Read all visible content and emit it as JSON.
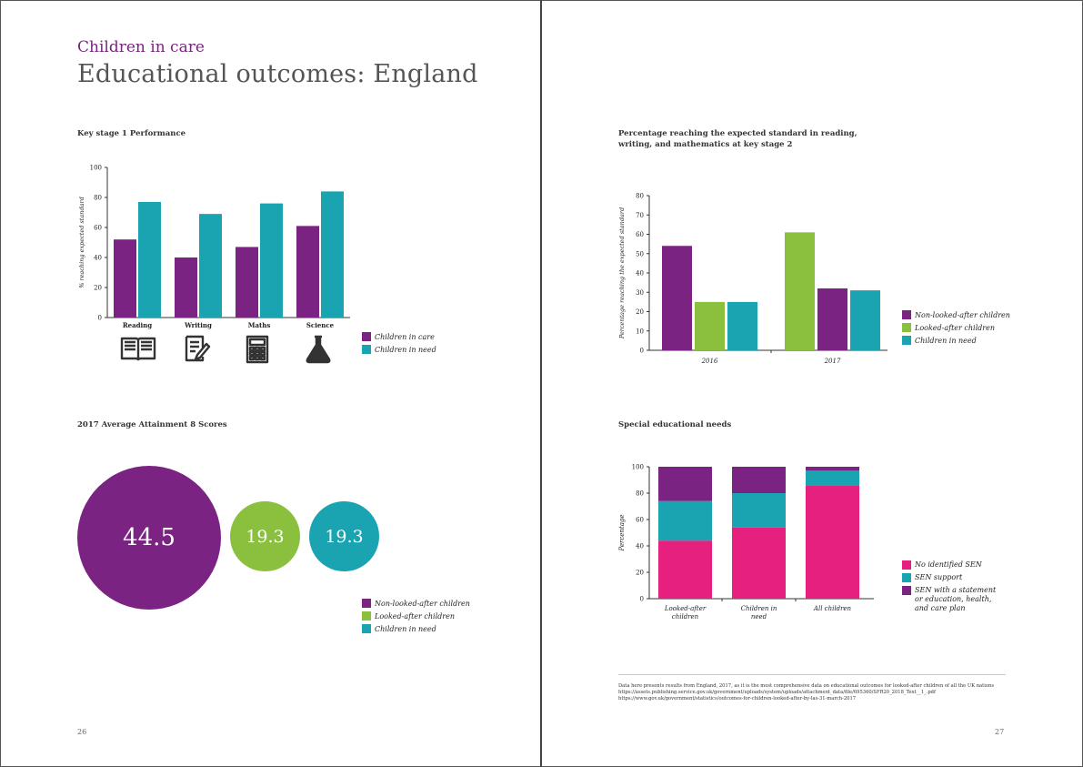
{
  "header": {
    "section_title": "Children in care",
    "main_title": "Educational outcomes: England"
  },
  "colors": {
    "purple": "#7b2382",
    "teal": "#1aa3b0",
    "green": "#8bbf3e",
    "pink": "#e5207f"
  },
  "icons": [
    "book-icon",
    "document-pen-icon",
    "calculator-icon",
    "flask-icon"
  ],
  "ks1": {
    "chart_data": {
      "type": "bar",
      "title": "Key stage 1 Performance",
      "ylabel": "% reaching expected standard",
      "ylim": [
        0,
        100
      ],
      "yticks": [
        "0",
        "20",
        "40",
        "60",
        "80",
        "100"
      ],
      "categories": [
        "Reading",
        "Writing",
        "Maths",
        "Science"
      ],
      "series": [
        {
          "name": "Children in care",
          "values": [
            52,
            40,
            47,
            61
          ]
        },
        {
          "name": "Children in need",
          "values": [
            77,
            69,
            76,
            84
          ]
        }
      ]
    }
  },
  "ks2": {
    "chart_data": {
      "type": "bar",
      "title": "Percentage reaching the expected standard in reading, writing, and mathematics at key stage 2",
      "title_line1": "Percentage reaching the expected standard in reading,",
      "title_line2": "writing, and mathematics at key stage 2",
      "ylabel": "Percentage reaching the expected standard",
      "ylim": [
        0,
        80
      ],
      "yticks": [
        "0",
        "10",
        "20",
        "30",
        "40",
        "50",
        "60",
        "70",
        "80"
      ],
      "groups": [
        {
          "label": "2016",
          "bars": [
            {
              "series": "Non-looked-after children",
              "value": 54
            },
            {
              "series": "Looked-after children",
              "value": 25
            },
            {
              "series": "Children in need",
              "value": 25
            }
          ]
        },
        {
          "label": "2017",
          "bars": [
            {
              "series": "Looked-after children",
              "value": 61
            },
            {
              "series": "Non-looked-after children",
              "value": 32
            },
            {
              "series": "Children in need",
              "value": 31
            }
          ]
        }
      ],
      "legend": [
        "Non-looked-after children",
        "Looked-after children",
        "Children in need"
      ]
    }
  },
  "attainment": {
    "chart_data": {
      "type": "bubble",
      "title": "2017 Average Attainment 8 Scores",
      "values": [
        {
          "series": "Non-looked-after children",
          "value": 44.5,
          "label": "44.5"
        },
        {
          "series": "Looked-after children",
          "value": 19.3,
          "label": "19.3"
        },
        {
          "series": "Children in need",
          "value": 19.3,
          "label": "19.3"
        }
      ],
      "legend": [
        "Non-looked-after children",
        "Looked-after children",
        "Children in need"
      ]
    }
  },
  "sen": {
    "chart_data": {
      "type": "bar",
      "stacked": true,
      "title": "Special educational needs",
      "ylabel": "Percentage",
      "ylim": [
        0,
        100
      ],
      "yticks": [
        "0",
        "20",
        "40",
        "60",
        "80",
        "100"
      ],
      "categories": [
        "Looked-after children",
        "Children in need",
        "All children"
      ],
      "category_lines": [
        [
          "Looked-after",
          "children"
        ],
        [
          "Children in",
          "need"
        ],
        [
          "All children"
        ]
      ],
      "series": [
        {
          "name": "No identified SEN",
          "values": [
            44,
            54,
            86
          ]
        },
        {
          "name": "SEN support",
          "values": [
            30,
            26,
            11
          ]
        },
        {
          "name": "SEN with a statement or education, health, and care plan",
          "values": [
            26,
            20,
            3
          ]
        }
      ],
      "legend_lines": [
        [
          "No identified SEN"
        ],
        [
          "SEN support"
        ],
        [
          "SEN with a statement",
          "or education, health,",
          "and care plan"
        ]
      ]
    }
  },
  "footnote": {
    "line1": "Data here presents results from England, 2017, as it is the most comprehensive data on educational outcomes for looked-after children of all the UK nations",
    "line2": "https://assets.publishing.service.gov.uk/government/uploads/system/uploads/attachment_data/file/695360/SFR20_2018_Text__1_.pdf",
    "line3": "https://www.gov.uk/government/statistics/outcomes-for-children-looked-after-by-las-31-march-2017"
  },
  "page_numbers": {
    "left": "26",
    "right": "27"
  }
}
